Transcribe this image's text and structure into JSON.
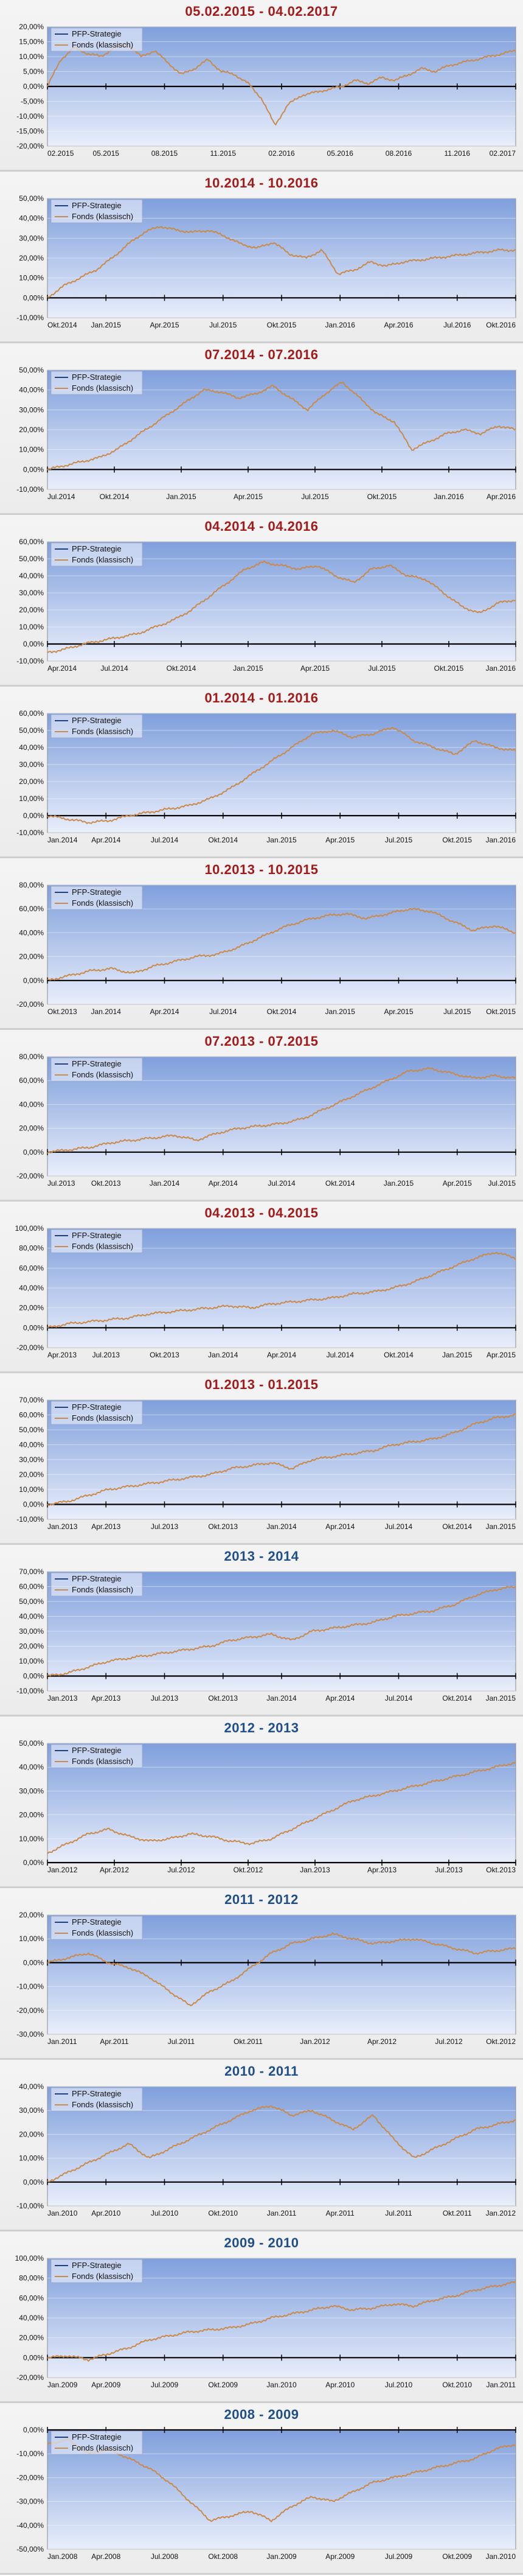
{
  "legend": {
    "strategy_label": "PFP-Strategie",
    "fund_label": "Fonds (klassisch)"
  },
  "colors": {
    "title_red": "#a31a1a",
    "title_blue": "#1f4f8a",
    "fund_line": "#c98a4b",
    "strategy_line": "#1f3f7f",
    "zero_line": "#000000"
  },
  "chart_data": [
    {
      "type": "line",
      "title": "05.02.2015 - 04.02.2017",
      "title_color": "red",
      "y_ticks": [
        "20,00%",
        "15,00%",
        "10,00%",
        "5,00%",
        "0,00%",
        "-5,00%",
        "-10,00%",
        "-15,00%",
        "-20,00%"
      ],
      "ylim": [
        -20,
        20
      ],
      "x_ticks": [
        "02.2015",
        "05.2015",
        "08.2015",
        "11.2015",
        "02.2016",
        "05.2016",
        "08.2016",
        "11.2016",
        "02.2017"
      ],
      "series": [
        {
          "name": "Fonds (klassisch)",
          "values": [
            0,
            9,
            13,
            11,
            10,
            13,
            14,
            10,
            12,
            8,
            4,
            6,
            9,
            5,
            4,
            1,
            -4,
            -13,
            -6,
            -3,
            -2,
            -1,
            0,
            2,
            1,
            3,
            2,
            4,
            6,
            5,
            7,
            8,
            9,
            10,
            11,
            12
          ]
        }
      ]
    },
    {
      "type": "line",
      "title": "10.2014 - 10.2016",
      "title_color": "red",
      "y_ticks": [
        "50,00%",
        "40,00%",
        "30,00%",
        "20,00%",
        "10,00%",
        "0,00%",
        "-10,00%"
      ],
      "ylim": [
        -10,
        50
      ],
      "x_ticks": [
        "Okt.2014",
        "Jan.2015",
        "Apr.2015",
        "Jul.2015",
        "Okt.2015",
        "Jan.2016",
        "Apr.2016",
        "Jul.2016",
        "Okt.2016"
      ],
      "series": [
        {
          "name": "Fonds (klassisch)",
          "values": [
            0,
            6,
            10,
            14,
            20,
            27,
            33,
            36,
            34,
            33,
            34,
            31,
            27,
            25,
            28,
            22,
            20,
            24,
            12,
            14,
            18,
            16,
            18,
            19,
            20,
            21,
            22,
            23,
            24,
            24
          ]
        }
      ]
    },
    {
      "type": "line",
      "title": "07.2014 - 07.2016",
      "title_color": "red",
      "y_ticks": [
        "50,00%",
        "40,00%",
        "30,00%",
        "20,00%",
        "10,00%",
        "0,00%",
        "-10,00%"
      ],
      "ylim": [
        -10,
        50
      ],
      "x_ticks": [
        "Jul.2014",
        "Okt.2014",
        "Jan.2015",
        "Apr.2015",
        "Jul.2015",
        "Okt.2015",
        "Jan.2016",
        "Apr.2016"
      ],
      "series": [
        {
          "name": "Fonds (klassisch)",
          "values": [
            0,
            2,
            4,
            6,
            10,
            16,
            22,
            28,
            34,
            40,
            39,
            36,
            38,
            42,
            36,
            30,
            38,
            44,
            36,
            28,
            24,
            10,
            14,
            18,
            20,
            18,
            22,
            20
          ]
        }
      ]
    },
    {
      "type": "line",
      "title": "04.2014 - 04.2016",
      "title_color": "red",
      "y_ticks": [
        "60,00%",
        "50,00%",
        "40,00%",
        "30,00%",
        "20,00%",
        "10,00%",
        "0,00%",
        "-10,00%"
      ],
      "ylim": [
        -10,
        60
      ],
      "x_ticks": [
        "Apr.2014",
        "Jul.2014",
        "Okt.2014",
        "Jan.2015",
        "Apr.2015",
        "Jul.2015",
        "Okt.2015",
        "Jan.2016"
      ],
      "series": [
        {
          "name": "Fonds (klassisch)",
          "values": [
            -5,
            -3,
            0,
            2,
            4,
            6,
            10,
            14,
            20,
            28,
            36,
            44,
            48,
            46,
            44,
            46,
            40,
            36,
            44,
            46,
            40,
            38,
            30,
            22,
            18,
            24,
            26
          ]
        }
      ]
    },
    {
      "type": "line",
      "title": "01.2014 - 01.2016",
      "title_color": "red",
      "y_ticks": [
        "60,00%",
        "50,00%",
        "40,00%",
        "30,00%",
        "20,00%",
        "10,00%",
        "0,00%",
        "-10,00%"
      ],
      "ylim": [
        -10,
        60
      ],
      "x_ticks": [
        "Jan.2014",
        "Apr.2014",
        "Jul.2014",
        "Okt.2014",
        "Jan.2015",
        "Apr.2015",
        "Jul.2015",
        "Okt.2015",
        "Jan.2016"
      ],
      "series": [
        {
          "name": "Fonds (klassisch)",
          "values": [
            0,
            -2,
            -4,
            -3,
            0,
            2,
            4,
            6,
            10,
            16,
            24,
            32,
            40,
            48,
            50,
            46,
            48,
            52,
            44,
            40,
            36,
            44,
            40,
            38
          ]
        }
      ]
    },
    {
      "type": "line",
      "title": "10.2013 - 10.2015",
      "title_color": "red",
      "y_ticks": [
        "80,00%",
        "60,00%",
        "40,00%",
        "20,00%",
        "0,00%",
        "-20,00%"
      ],
      "ylim": [
        -20,
        80
      ],
      "x_ticks": [
        "Okt.2013",
        "Jan.2014",
        "Apr.2014",
        "Jul.2014",
        "Okt.2014",
        "Jan.2015",
        "Apr.2015",
        "Jul.2015",
        "Okt.2015"
      ],
      "series": [
        {
          "name": "Fonds (klassisch)",
          "values": [
            0,
            4,
            8,
            10,
            6,
            12,
            16,
            20,
            22,
            28,
            36,
            44,
            50,
            54,
            56,
            52,
            56,
            60,
            58,
            50,
            42,
            46,
            40
          ]
        }
      ]
    },
    {
      "type": "line",
      "title": "07.2013 - 07.2015",
      "title_color": "red",
      "y_ticks": [
        "80,00%",
        "60,00%",
        "40,00%",
        "20,00%",
        "0,00%",
        "-20,00%"
      ],
      "ylim": [
        -20,
        80
      ],
      "x_ticks": [
        "Jul.2013",
        "Okt.2013",
        "Jan.2014",
        "Apr.2014",
        "Jul.2014",
        "Okt.2014",
        "Jan.2015",
        "Apr.2015",
        "Jul.2015"
      ],
      "series": [
        {
          "name": "Fonds (klassisch)",
          "values": [
            0,
            2,
            4,
            8,
            10,
            12,
            14,
            10,
            16,
            20,
            22,
            24,
            28,
            36,
            44,
            52,
            60,
            68,
            70,
            66,
            62,
            64,
            62
          ]
        }
      ]
    },
    {
      "type": "line",
      "title": "04.2013 - 04.2015",
      "title_color": "red",
      "y_ticks": [
        "100,00%",
        "80,00%",
        "60,00%",
        "40,00%",
        "20,00%",
        "0,00%",
        "-20,00%"
      ],
      "ylim": [
        -20,
        100
      ],
      "x_ticks": [
        "Apr.2013",
        "Jul.2013",
        "Okt.2013",
        "Jan.2014",
        "Apr.2014",
        "Jul.2014",
        "Okt.2014",
        "Jan.2015",
        "Apr.2015"
      ],
      "series": [
        {
          "name": "Fonds (klassisch)",
          "values": [
            0,
            4,
            6,
            8,
            10,
            14,
            16,
            18,
            20,
            22,
            20,
            24,
            26,
            28,
            30,
            34,
            36,
            40,
            46,
            54,
            62,
            70,
            76,
            70
          ]
        }
      ]
    },
    {
      "type": "line",
      "title": "01.2013 - 01.2015",
      "title_color": "red",
      "y_ticks": [
        "70,00%",
        "60,00%",
        "50,00%",
        "40,00%",
        "30,00%",
        "20,00%",
        "10,00%",
        "0,00%",
        "-10,00%"
      ],
      "ylim": [
        -10,
        70
      ],
      "x_ticks": [
        "Jan.2013",
        "Apr.2013",
        "Jul.2013",
        "Okt.2013",
        "Jan.2014",
        "Apr.2014",
        "Jul.2014",
        "Okt.2014",
        "Jan.2015"
      ],
      "series": [
        {
          "name": "Fonds (klassisch)",
          "values": [
            0,
            2,
            6,
            10,
            12,
            14,
            16,
            18,
            20,
            24,
            26,
            28,
            24,
            30,
            32,
            34,
            36,
            40,
            42,
            44,
            48,
            54,
            58,
            60
          ]
        }
      ]
    },
    {
      "type": "line",
      "title": "2013 - 2014",
      "title_color": "blue",
      "y_ticks": [
        "70,00%",
        "60,00%",
        "50,00%",
        "40,00%",
        "30,00%",
        "20,00%",
        "10,00%",
        "0,00%",
        "-10,00%"
      ],
      "ylim": [
        -10,
        70
      ],
      "x_ticks": [
        "Jan.2013",
        "Apr.2013",
        "Jul.2013",
        "Okt.2013",
        "Jan.2014",
        "Apr.2014",
        "Jul.2014",
        "Okt.2014",
        "Jan.2015"
      ],
      "series": [
        {
          "name": "Fonds (klassisch)",
          "values": [
            0,
            2,
            6,
            10,
            12,
            14,
            16,
            18,
            20,
            24,
            26,
            28,
            24,
            30,
            32,
            34,
            36,
            40,
            42,
            44,
            48,
            54,
            58,
            60
          ]
        }
      ]
    },
    {
      "type": "line",
      "title": "2012 - 2013",
      "title_color": "blue",
      "y_ticks": [
        "50,00%",
        "40,00%",
        "30,00%",
        "20,00%",
        "10,00%",
        "0,00%"
      ],
      "ylim": [
        0,
        50
      ],
      "x_ticks": [
        "Jan.2012",
        "Apr.2012",
        "Jul.2012",
        "Okt.2012",
        "Jan.2013",
        "Apr.2013",
        "Jul.2013",
        "Okt.2013"
      ],
      "series": [
        {
          "name": "Fonds (klassisch)",
          "values": [
            4,
            8,
            12,
            14,
            11,
            9,
            10,
            12,
            11,
            9,
            8,
            10,
            14,
            18,
            22,
            26,
            28,
            30,
            32,
            34,
            36,
            38,
            40,
            42
          ]
        }
      ]
    },
    {
      "type": "line",
      "title": "2011 - 2012",
      "title_color": "blue",
      "y_ticks": [
        "20,00%",
        "10,00%",
        "0,00%",
        "-10,00%",
        "-20,00%",
        "-30,00%"
      ],
      "ylim": [
        -30,
        20
      ],
      "x_ticks": [
        "Jan.2011",
        "Apr.2011",
        "Jul.2011",
        "Okt.2011",
        "Jan.2012",
        "Apr.2012",
        "Jul.2012",
        "Okt.2012"
      ],
      "series": [
        {
          "name": "Fonds (klassisch)",
          "values": [
            0,
            2,
            4,
            0,
            -2,
            -6,
            -12,
            -18,
            -12,
            -8,
            -2,
            4,
            8,
            10,
            12,
            10,
            8,
            9,
            10,
            8,
            6,
            4,
            5,
            6
          ]
        }
      ]
    },
    {
      "type": "line",
      "title": "2010 - 2011",
      "title_color": "blue",
      "y_ticks": [
        "40,00%",
        "30,00%",
        "20,00%",
        "10,00%",
        "0,00%",
        "-10,00%"
      ],
      "ylim": [
        -10,
        40
      ],
      "x_ticks": [
        "Jan.2010",
        "Apr.2010",
        "Jul.2010",
        "Okt.2010",
        "Jan.2011",
        "Apr.2011",
        "Jul.2011",
        "Okt.2011",
        "Jan.2012"
      ],
      "series": [
        {
          "name": "Fonds (klassisch)",
          "values": [
            0,
            4,
            8,
            12,
            16,
            10,
            14,
            18,
            22,
            26,
            30,
            32,
            28,
            30,
            26,
            22,
            28,
            18,
            10,
            14,
            18,
            22,
            24,
            26
          ]
        }
      ]
    },
    {
      "type": "line",
      "title": "2009 - 2010",
      "title_color": "blue",
      "y_ticks": [
        "100,00%",
        "80,00%",
        "60,00%",
        "40,00%",
        "20,00%",
        "0,00%",
        "-20,00%"
      ],
      "ylim": [
        -20,
        100
      ],
      "x_ticks": [
        "Jan.2009",
        "Apr.2009",
        "Jul.2009",
        "Okt.2009",
        "Jan.2010",
        "Apr.2010",
        "Jul.2010",
        "Okt.2010",
        "Jan.2011"
      ],
      "series": [
        {
          "name": "Fonds (klassisch)",
          "values": [
            0,
            2,
            -2,
            4,
            10,
            18,
            22,
            26,
            28,
            30,
            34,
            40,
            44,
            48,
            52,
            48,
            50,
            54,
            52,
            58,
            62,
            68,
            72,
            76
          ]
        }
      ]
    },
    {
      "type": "line",
      "title": "2008 - 2009",
      "title_color": "blue",
      "y_ticks": [
        "0,00%",
        "-10,00%",
        "-20,00%",
        "-30,00%",
        "-40,00%",
        "-50,00%"
      ],
      "ylim": [
        -50,
        0
      ],
      "x_ticks": [
        "Jan.2008",
        "Apr.2008",
        "Jul.2008",
        "Okt.2008",
        "Jan.2009",
        "Apr.2009",
        "Jul.2009",
        "Okt.2009",
        "Jan.2010"
      ],
      "series": [
        {
          "name": "Fonds (klassisch)",
          "values": [
            -6,
            -4,
            -10,
            -8,
            -12,
            -16,
            -22,
            -30,
            -38,
            -36,
            -34,
            -38,
            -32,
            -28,
            -30,
            -26,
            -22,
            -20,
            -18,
            -16,
            -14,
            -12,
            -8,
            -6
          ]
        }
      ]
    }
  ]
}
